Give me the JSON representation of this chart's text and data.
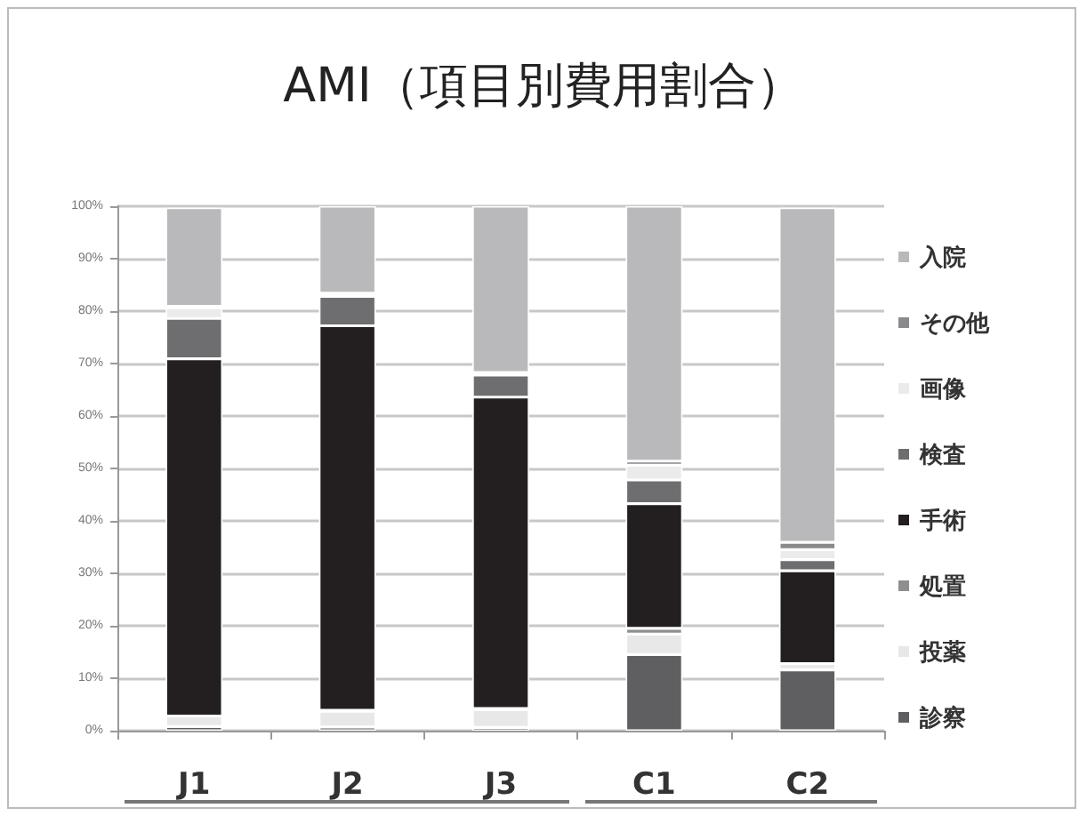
{
  "chart_data": {
    "type": "bar",
    "title": "AMI（項目別費用割合）",
    "categories": [
      "J1",
      "J2",
      "J3",
      "C1",
      "C2"
    ],
    "stacked": true,
    "series": [
      {
        "name": "診察",
        "color": "#5f5f61",
        "values": [
          0.8,
          0.7,
          0.6,
          14.5,
          11.6
        ]
      },
      {
        "name": "投薬",
        "color": "#e8e8e8",
        "values": [
          2.0,
          3.0,
          3.4,
          3.9,
          1.2
        ]
      },
      {
        "name": "処置",
        "color": "#8f8f91",
        "values": [
          null,
          0.2,
          0.2,
          1.1,
          null
        ]
      },
      {
        "name": "手術",
        "color": "#231f20",
        "values": [
          68.1,
          73.3,
          59.4,
          23.8,
          17.7
        ]
      },
      {
        "name": "検査",
        "color": "#6e6e70",
        "values": [
          7.7,
          5.6,
          4.2,
          4.5,
          2.1
        ]
      },
      {
        "name": "画像",
        "color": "#ebebeb",
        "values": [
          2.0,
          0.4,
          0.3,
          2.8,
          1.9
        ]
      },
      {
        "name": "その他",
        "color": "#8a8a8c",
        "values": [
          0.3,
          0.2,
          0.2,
          0.8,
          1.4
        ]
      },
      {
        "name": "入院",
        "color": "#b9b9bb",
        "values": [
          18.8,
          16.6,
          31.7,
          48.6,
          63.8
        ]
      }
    ],
    "ylim": [
      0,
      100
    ],
    "yticks": [
      {
        "value": 0,
        "label": "0%"
      },
      {
        "value": 10,
        "label": "10%"
      },
      {
        "value": 20,
        "label": "20%"
      },
      {
        "value": 30,
        "label": "30%"
      },
      {
        "value": 40,
        "label": "40%"
      },
      {
        "value": 50,
        "label": "50%"
      },
      {
        "value": 60,
        "label": "60%"
      },
      {
        "value": 70,
        "label": "70%"
      },
      {
        "value": 80,
        "label": "80%"
      },
      {
        "value": 90,
        "label": "90%"
      },
      {
        "value": 100,
        "label": "100%"
      }
    ],
    "grid": "y",
    "legend": "right"
  }
}
